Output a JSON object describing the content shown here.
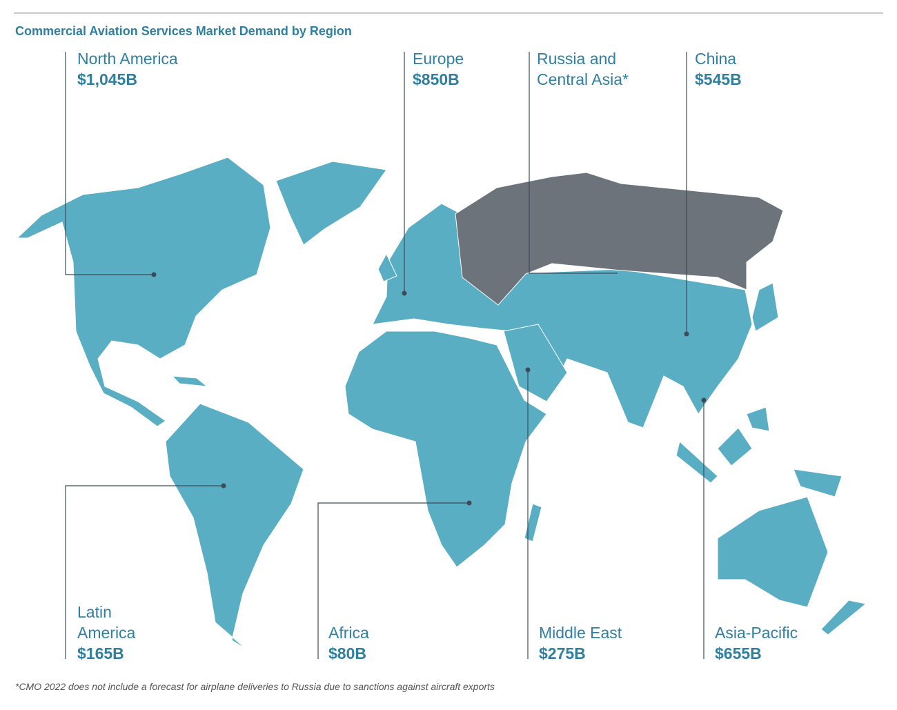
{
  "title": "Commercial Aviation Services Market Demand by Region",
  "regions": [
    {
      "name": [
        "North America"
      ],
      "value": "$1,045B"
    },
    {
      "name": [
        "Europe"
      ],
      "value": "$850B"
    },
    {
      "name": [
        "Russia and",
        "Central Asia*"
      ]
    },
    {
      "name": [
        "China"
      ],
      "value": "$545B"
    },
    {
      "name": [
        "Latin",
        "America"
      ],
      "value": "$165B"
    },
    {
      "name": [
        "Africa"
      ],
      "value": "$80B"
    },
    {
      "name": [
        "Middle East"
      ],
      "value": "$275B"
    },
    {
      "name": [
        "Asia-Pacific"
      ],
      "value": "$655B"
    }
  ],
  "footnote": "*CMO 2022 does not include a forecast for airplane deliveries to Russia due to sanctions against aircraft exports"
}
